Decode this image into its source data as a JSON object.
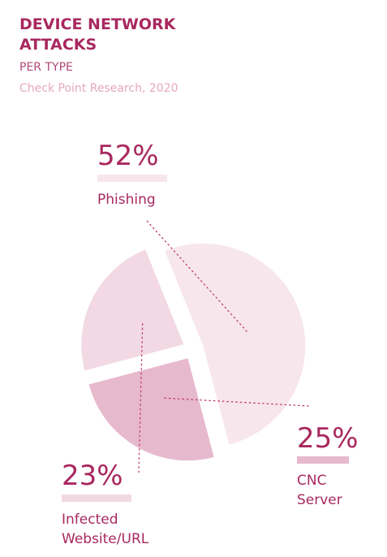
{
  "header": {
    "title_line1": "DEVICE NETWORK",
    "title_line2": "ATTACKS",
    "subtitle": "PER TYPE",
    "source": "Check Point Research, 2020"
  },
  "colors": {
    "accent": "#a8285f",
    "phishing": "#f7e7ec",
    "infected": "#f2d9e4",
    "cnc": "#e7b9cd",
    "leader": "#c23a70"
  },
  "chart_data": {
    "type": "pie",
    "title": "DEVICE NETWORK ATTACKS",
    "subtitle": "PER TYPE",
    "categories": [
      "Phishing",
      "CNC Server",
      "Infected Website/URL"
    ],
    "values": [
      52,
      25,
      23
    ],
    "value_labels": [
      "52%",
      "25%",
      "23%"
    ],
    "category_labels": [
      [
        "Phishing"
      ],
      [
        "CNC",
        "Server"
      ],
      [
        "Infected",
        "Website/URL"
      ]
    ],
    "exploded": true
  }
}
